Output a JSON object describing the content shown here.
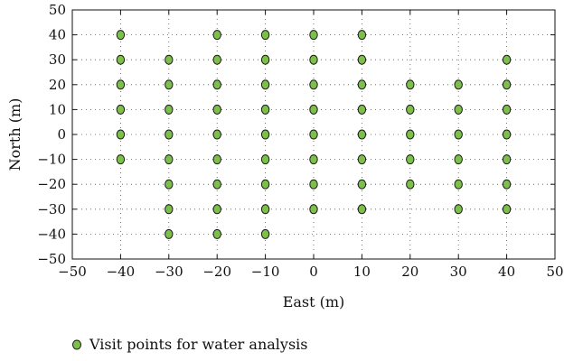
{
  "chart_data": {
    "type": "scatter",
    "title": "",
    "xlabel": "East (m)",
    "ylabel": "North (m)",
    "xlim": [
      -50,
      50
    ],
    "ylim": [
      -50,
      50
    ],
    "xticks": [
      -50,
      -40,
      -30,
      -20,
      -10,
      0,
      10,
      20,
      30,
      40,
      50
    ],
    "yticks": [
      -50,
      -40,
      -30,
      -20,
      -10,
      0,
      10,
      20,
      30,
      40,
      50
    ],
    "xtick_labels": [
      "−50",
      "−40",
      "−30",
      "−20",
      "−10",
      "0",
      "10",
      "20",
      "30",
      "40",
      "50"
    ],
    "ytick_labels": [
      "−50",
      "−40",
      "−30",
      "−20",
      "−10",
      "0",
      "10",
      "20",
      "30",
      "40",
      "50"
    ],
    "grid": true,
    "legend_position": "bottom-left",
    "series": [
      {
        "name": "Visit points for water analysis",
        "color": "#7cc04a",
        "edge_color": "#1a1a1a",
        "points": [
          [
            -40,
            40
          ],
          [
            -40,
            30
          ],
          [
            -40,
            20
          ],
          [
            -40,
            10
          ],
          [
            -40,
            0
          ],
          [
            -40,
            -10
          ],
          [
            -30,
            30
          ],
          [
            -30,
            20
          ],
          [
            -30,
            10
          ],
          [
            -30,
            0
          ],
          [
            -30,
            -10
          ],
          [
            -30,
            -20
          ],
          [
            -30,
            -30
          ],
          [
            -30,
            -40
          ],
          [
            -20,
            40
          ],
          [
            -20,
            30
          ],
          [
            -20,
            20
          ],
          [
            -20,
            10
          ],
          [
            -20,
            0
          ],
          [
            -20,
            -10
          ],
          [
            -20,
            -20
          ],
          [
            -20,
            -30
          ],
          [
            -20,
            -40
          ],
          [
            -10,
            40
          ],
          [
            -10,
            30
          ],
          [
            -10,
            20
          ],
          [
            -10,
            10
          ],
          [
            -10,
            0
          ],
          [
            -10,
            -10
          ],
          [
            -10,
            -20
          ],
          [
            -10,
            -30
          ],
          [
            -10,
            -40
          ],
          [
            0,
            40
          ],
          [
            0,
            30
          ],
          [
            0,
            20
          ],
          [
            0,
            10
          ],
          [
            0,
            0
          ],
          [
            0,
            -10
          ],
          [
            0,
            -20
          ],
          [
            0,
            -30
          ],
          [
            10,
            40
          ],
          [
            10,
            30
          ],
          [
            10,
            20
          ],
          [
            10,
            10
          ],
          [
            10,
            0
          ],
          [
            10,
            -10
          ],
          [
            10,
            -20
          ],
          [
            10,
            -30
          ],
          [
            20,
            20
          ],
          [
            20,
            10
          ],
          [
            20,
            0
          ],
          [
            20,
            -10
          ],
          [
            20,
            -20
          ],
          [
            30,
            20
          ],
          [
            30,
            10
          ],
          [
            30,
            0
          ],
          [
            30,
            -10
          ],
          [
            30,
            -20
          ],
          [
            30,
            -30
          ],
          [
            40,
            30
          ],
          [
            40,
            20
          ],
          [
            40,
            10
          ],
          [
            40,
            0
          ],
          [
            40,
            -10
          ],
          [
            40,
            -20
          ],
          [
            40,
            -30
          ]
        ]
      }
    ]
  }
}
